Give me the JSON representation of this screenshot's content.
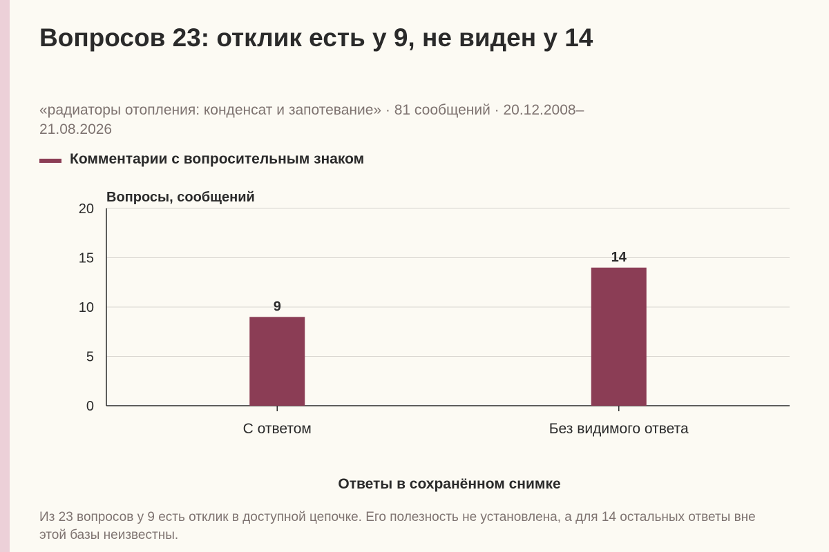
{
  "header": {
    "title": "Вопросов 23: отклик есть у 9, не виден у 14",
    "subtitle": "«радиаторы отопления: конденсат и запотевание» · 81 сообщений · 20.12.2008–21.08.2026"
  },
  "footnote": "Из 23 вопросов у 9 есть отклик в доступной цепочке. Его полезность не установлена, а для 14 остальных ответы вне этой базы неизвестны.",
  "colors": {
    "bar": "#8b3d55",
    "grid": "#d9d6d0",
    "axis": "#2a2a2a",
    "background": "#fcfaf3"
  },
  "chart_data": {
    "type": "bar",
    "categories": [
      "С ответом",
      "Без видимого ответа"
    ],
    "series": [
      {
        "name": "Комментарии с вопросительным знаком",
        "values": [
          9,
          14
        ]
      }
    ],
    "xlabel": "Ответы в сохранённом снимке",
    "ylabel": "Вопросы, сообщений",
    "ylim": [
      0,
      20
    ],
    "yticks": [
      0,
      5,
      10,
      15,
      20
    ],
    "grid": true,
    "legend_position": "top-left",
    "data_labels": true
  }
}
